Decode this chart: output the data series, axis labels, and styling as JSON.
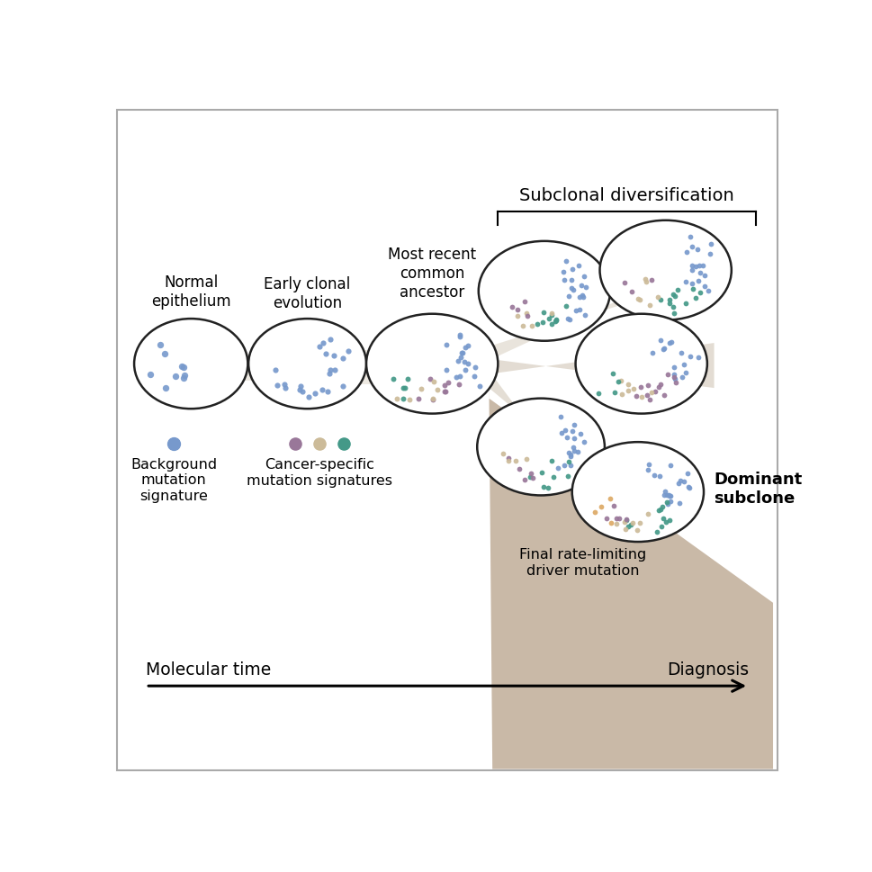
{
  "bg_color": "#ffffff",
  "border_color": "#222222",
  "dot_blue": "#7799cc",
  "dot_purple": "#997799",
  "dot_tan": "#ccbb99",
  "dot_teal": "#449988",
  "dot_orange": "#ddaa66",
  "connecting_color_light": "#d8cfc0",
  "connecting_color_mid": "#c8bba8",
  "connecting_color_dark": "#a89070",
  "dominant_fill": "#9e8060",
  "timeline_label_left": "Molecular time",
  "timeline_label_right": "Diagnosis",
  "subclonal_label": "Subclonal diversification",
  "legend_blue_label": "Background\nmutation\nsignature",
  "legend_cancer_label": "Cancer-specific\nmutation signatures",
  "stage_labels": [
    "Normal\nepithelium",
    "Early clonal\nevolution",
    "Most recent\ncommon\nancestor"
  ],
  "bottom_label": "Final rate-limiting\ndriver mutation",
  "dominant_label": "Dominant\nsubclone"
}
